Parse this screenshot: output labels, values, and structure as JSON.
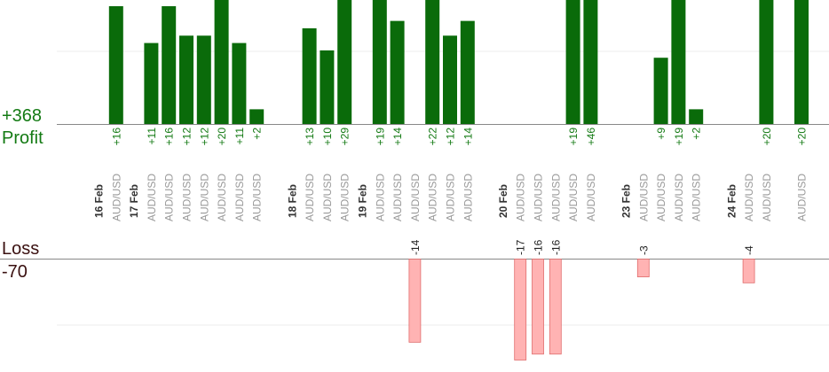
{
  "chart_data": {
    "type": "bar",
    "profit_total": "+368",
    "profit_label": "Profit",
    "loss_label": "Loss",
    "loss_total": "-70",
    "colors": {
      "profit": "#0a6b0a",
      "profit_text": "#137a13",
      "loss_fill": "#ffb3b3",
      "loss_stroke": "#e06d6d",
      "axis": "#888888",
      "grid": "#eeeeee",
      "date_text": "#333333",
      "pair_text": "#999999"
    },
    "profit_axis_max": 16,
    "loss_axis_max": 17,
    "columns": [
      {
        "date": "16 Feb"
      },
      {
        "pair": "AUD/USD",
        "profit": 16
      },
      {
        "date": "17 Feb"
      },
      {
        "pair": "AUD/USD",
        "profit": 11
      },
      {
        "pair": "AUD/USD",
        "profit": 16
      },
      {
        "pair": "AUD/USD",
        "profit": 12
      },
      {
        "pair": "AUD/USD",
        "profit": 12
      },
      {
        "pair": "AUD/USD",
        "profit": 20
      },
      {
        "pair": "AUD/USD",
        "profit": 11
      },
      {
        "pair": "AUD/USD",
        "profit": 2
      },
      {},
      {
        "date": "18 Feb"
      },
      {
        "pair": "AUD/USD",
        "profit": 13
      },
      {
        "pair": "AUD/USD",
        "profit": 10
      },
      {
        "pair": "AUD/USD",
        "profit": 29
      },
      {
        "date": "19 Feb"
      },
      {
        "pair": "AUD/USD",
        "profit": 19
      },
      {
        "pair": "AUD/USD",
        "profit": 14
      },
      {
        "pair": "AUD/USD",
        "loss": 14
      },
      {
        "pair": "AUD/USD",
        "profit": 22
      },
      {
        "pair": "AUD/USD",
        "profit": 12
      },
      {
        "pair": "AUD/USD",
        "profit": 14
      },
      {},
      {
        "date": "20 Feb"
      },
      {
        "pair": "AUD/USD",
        "loss": 17
      },
      {
        "pair": "AUD/USD",
        "loss": 16
      },
      {
        "pair": "AUD/USD",
        "loss": 16
      },
      {
        "pair": "AUD/USD",
        "profit": 19
      },
      {
        "pair": "AUD/USD",
        "profit": 46
      },
      {},
      {
        "date": "23 Feb"
      },
      {
        "pair": "AUD/USD",
        "loss": 3
      },
      {
        "pair": "AUD/USD",
        "profit": 9
      },
      {
        "pair": "AUD/USD",
        "profit": 19
      },
      {
        "pair": "AUD/USD",
        "profit": 2
      },
      {},
      {
        "date": "24 Feb"
      },
      {
        "pair": "AUD/USD",
        "loss": 4
      },
      {
        "pair": "AUD/USD",
        "profit": 20
      },
      {},
      {
        "pair": "AUD/USD",
        "profit": 20
      }
    ]
  }
}
